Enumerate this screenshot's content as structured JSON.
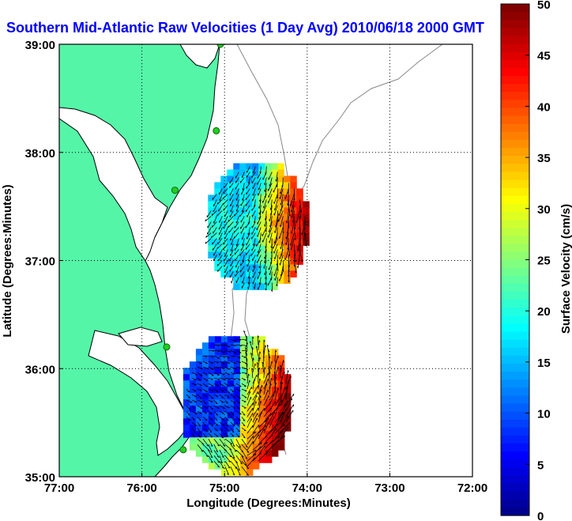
{
  "chart_data": {
    "type": "heatmap",
    "title": "Southern Mid-Atlantic Raw Velocities (1 Day Avg) 2010/06/18 2000 GMT",
    "xlabel": "Longitude (Degrees:Minutes)",
    "ylabel": "Latitude (Degrees:Minutes)",
    "x_ticks": [
      "77:00",
      "76:00",
      "75:00",
      "74:00",
      "73:00",
      "72:00"
    ],
    "y_ticks": [
      "39:00",
      "38:00",
      "37:00",
      "36:00",
      "35:00"
    ],
    "xlim": [
      -77,
      -72
    ],
    "ylim": [
      35,
      39
    ],
    "grid": true,
    "grid_style": "dotted",
    "colorbar": {
      "label": "Surface Velocity (cm/s)",
      "ticks": [
        "50",
        "45",
        "40",
        "35",
        "30",
        "25",
        "20",
        "15",
        "10",
        "5",
        "0"
      ],
      "range": [
        0,
        50
      ],
      "colormap": "jet"
    },
    "regions": [
      {
        "name": "north",
        "lon_range": [
          -75.2,
          -74.0
        ],
        "lat_range": [
          36.75,
          37.9
        ],
        "velocity_range_cm_s": [
          5,
          50
        ]
      },
      {
        "name": "south",
        "lon_range": [
          -75.5,
          -74.2
        ],
        "lat_range": [
          35.05,
          36.3
        ],
        "velocity_range_cm_s": [
          3,
          50
        ]
      }
    ],
    "stations": [
      {
        "lon": -75.05,
        "lat": 39.0
      },
      {
        "lon": -75.1,
        "lat": 38.2
      },
      {
        "lon": -75.6,
        "lat": 37.65
      },
      {
        "lon": -75.7,
        "lat": 36.2
      },
      {
        "lon": -75.5,
        "lat": 35.25
      }
    ]
  },
  "colors": {
    "land": "#55f5a8",
    "title": "#0000ff",
    "grid": "#000000",
    "bathymetry": "#888888",
    "station": "#22cc22"
  }
}
